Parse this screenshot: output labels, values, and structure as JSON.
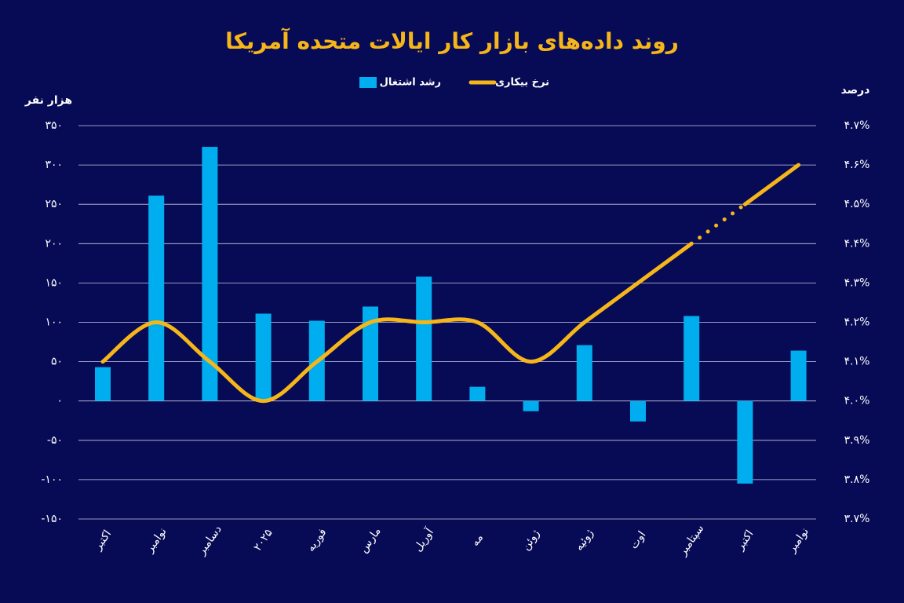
{
  "chart_data": {
    "type": "bar-line",
    "title": "روند داده‌های بازار کار ایالات متحده آمریکا",
    "y_label": "هزار نفر",
    "y2_label": "درصد",
    "categories": [
      "اکتبر",
      "نوامبر",
      "دسامبر",
      "۲۰۲۵",
      "فوریه",
      "مارس",
      "آوریل",
      "مه",
      "ژوئن",
      "ژوئیه",
      "اوت",
      "سپتامبر",
      "اکتبر",
      "نوامبر"
    ],
    "series": [
      {
        "name": "رشد اشتغال",
        "type": "bar",
        "color": "#00aeef",
        "values": [
          43,
          261,
          323,
          111,
          102,
          120,
          158,
          18,
          -13,
          71,
          -26,
          108,
          -105,
          64
        ]
      },
      {
        "name": "نرخ بیکاری",
        "type": "line",
        "axis": "y2",
        "color": "#f6b619",
        "dotted_segment": [
          11,
          12
        ],
        "values": [
          4.1,
          4.2,
          4.1,
          4.0,
          4.1,
          4.2,
          4.2,
          4.2,
          4.1,
          4.2,
          4.3,
          4.4,
          4.5,
          4.6
        ]
      }
    ],
    "ylim": [
      -150,
      350
    ],
    "yticks": [
      {
        "value": -150,
        "label": "-۱۵۰"
      },
      {
        "value": -100,
        "label": "-۱۰۰"
      },
      {
        "value": -50,
        "label": "-۵۰"
      },
      {
        "value": 0,
        "label": "۰"
      },
      {
        "value": 50,
        "label": "۵۰"
      },
      {
        "value": 100,
        "label": "۱۰۰"
      },
      {
        "value": 150,
        "label": "۱۵۰"
      },
      {
        "value": 200,
        "label": "۲۰۰"
      },
      {
        "value": 250,
        "label": "۲۵۰"
      },
      {
        "value": 300,
        "label": "۳۰۰"
      },
      {
        "value": 350,
        "label": "۳۵۰"
      }
    ],
    "y2lim": [
      3.7,
      4.7
    ],
    "y2ticks": [
      {
        "value": 3.7,
        "label": "۳.۷%"
      },
      {
        "value": 3.8,
        "label": "۳.۸%"
      },
      {
        "value": 3.9,
        "label": "۳.۹%"
      },
      {
        "value": 4.0,
        "label": "۴.۰%"
      },
      {
        "value": 4.1,
        "label": "۴.۱%"
      },
      {
        "value": 4.2,
        "label": "۴.۲%"
      },
      {
        "value": 4.3,
        "label": "۴.۳%"
      },
      {
        "value": 4.4,
        "label": "۴.۴%"
      },
      {
        "value": 4.5,
        "label": "۴.۵%"
      },
      {
        "value": 4.6,
        "label": "۴.۶%"
      },
      {
        "value": 4.7,
        "label": "۴.۷%"
      }
    ],
    "grid": true,
    "legend": "top"
  }
}
